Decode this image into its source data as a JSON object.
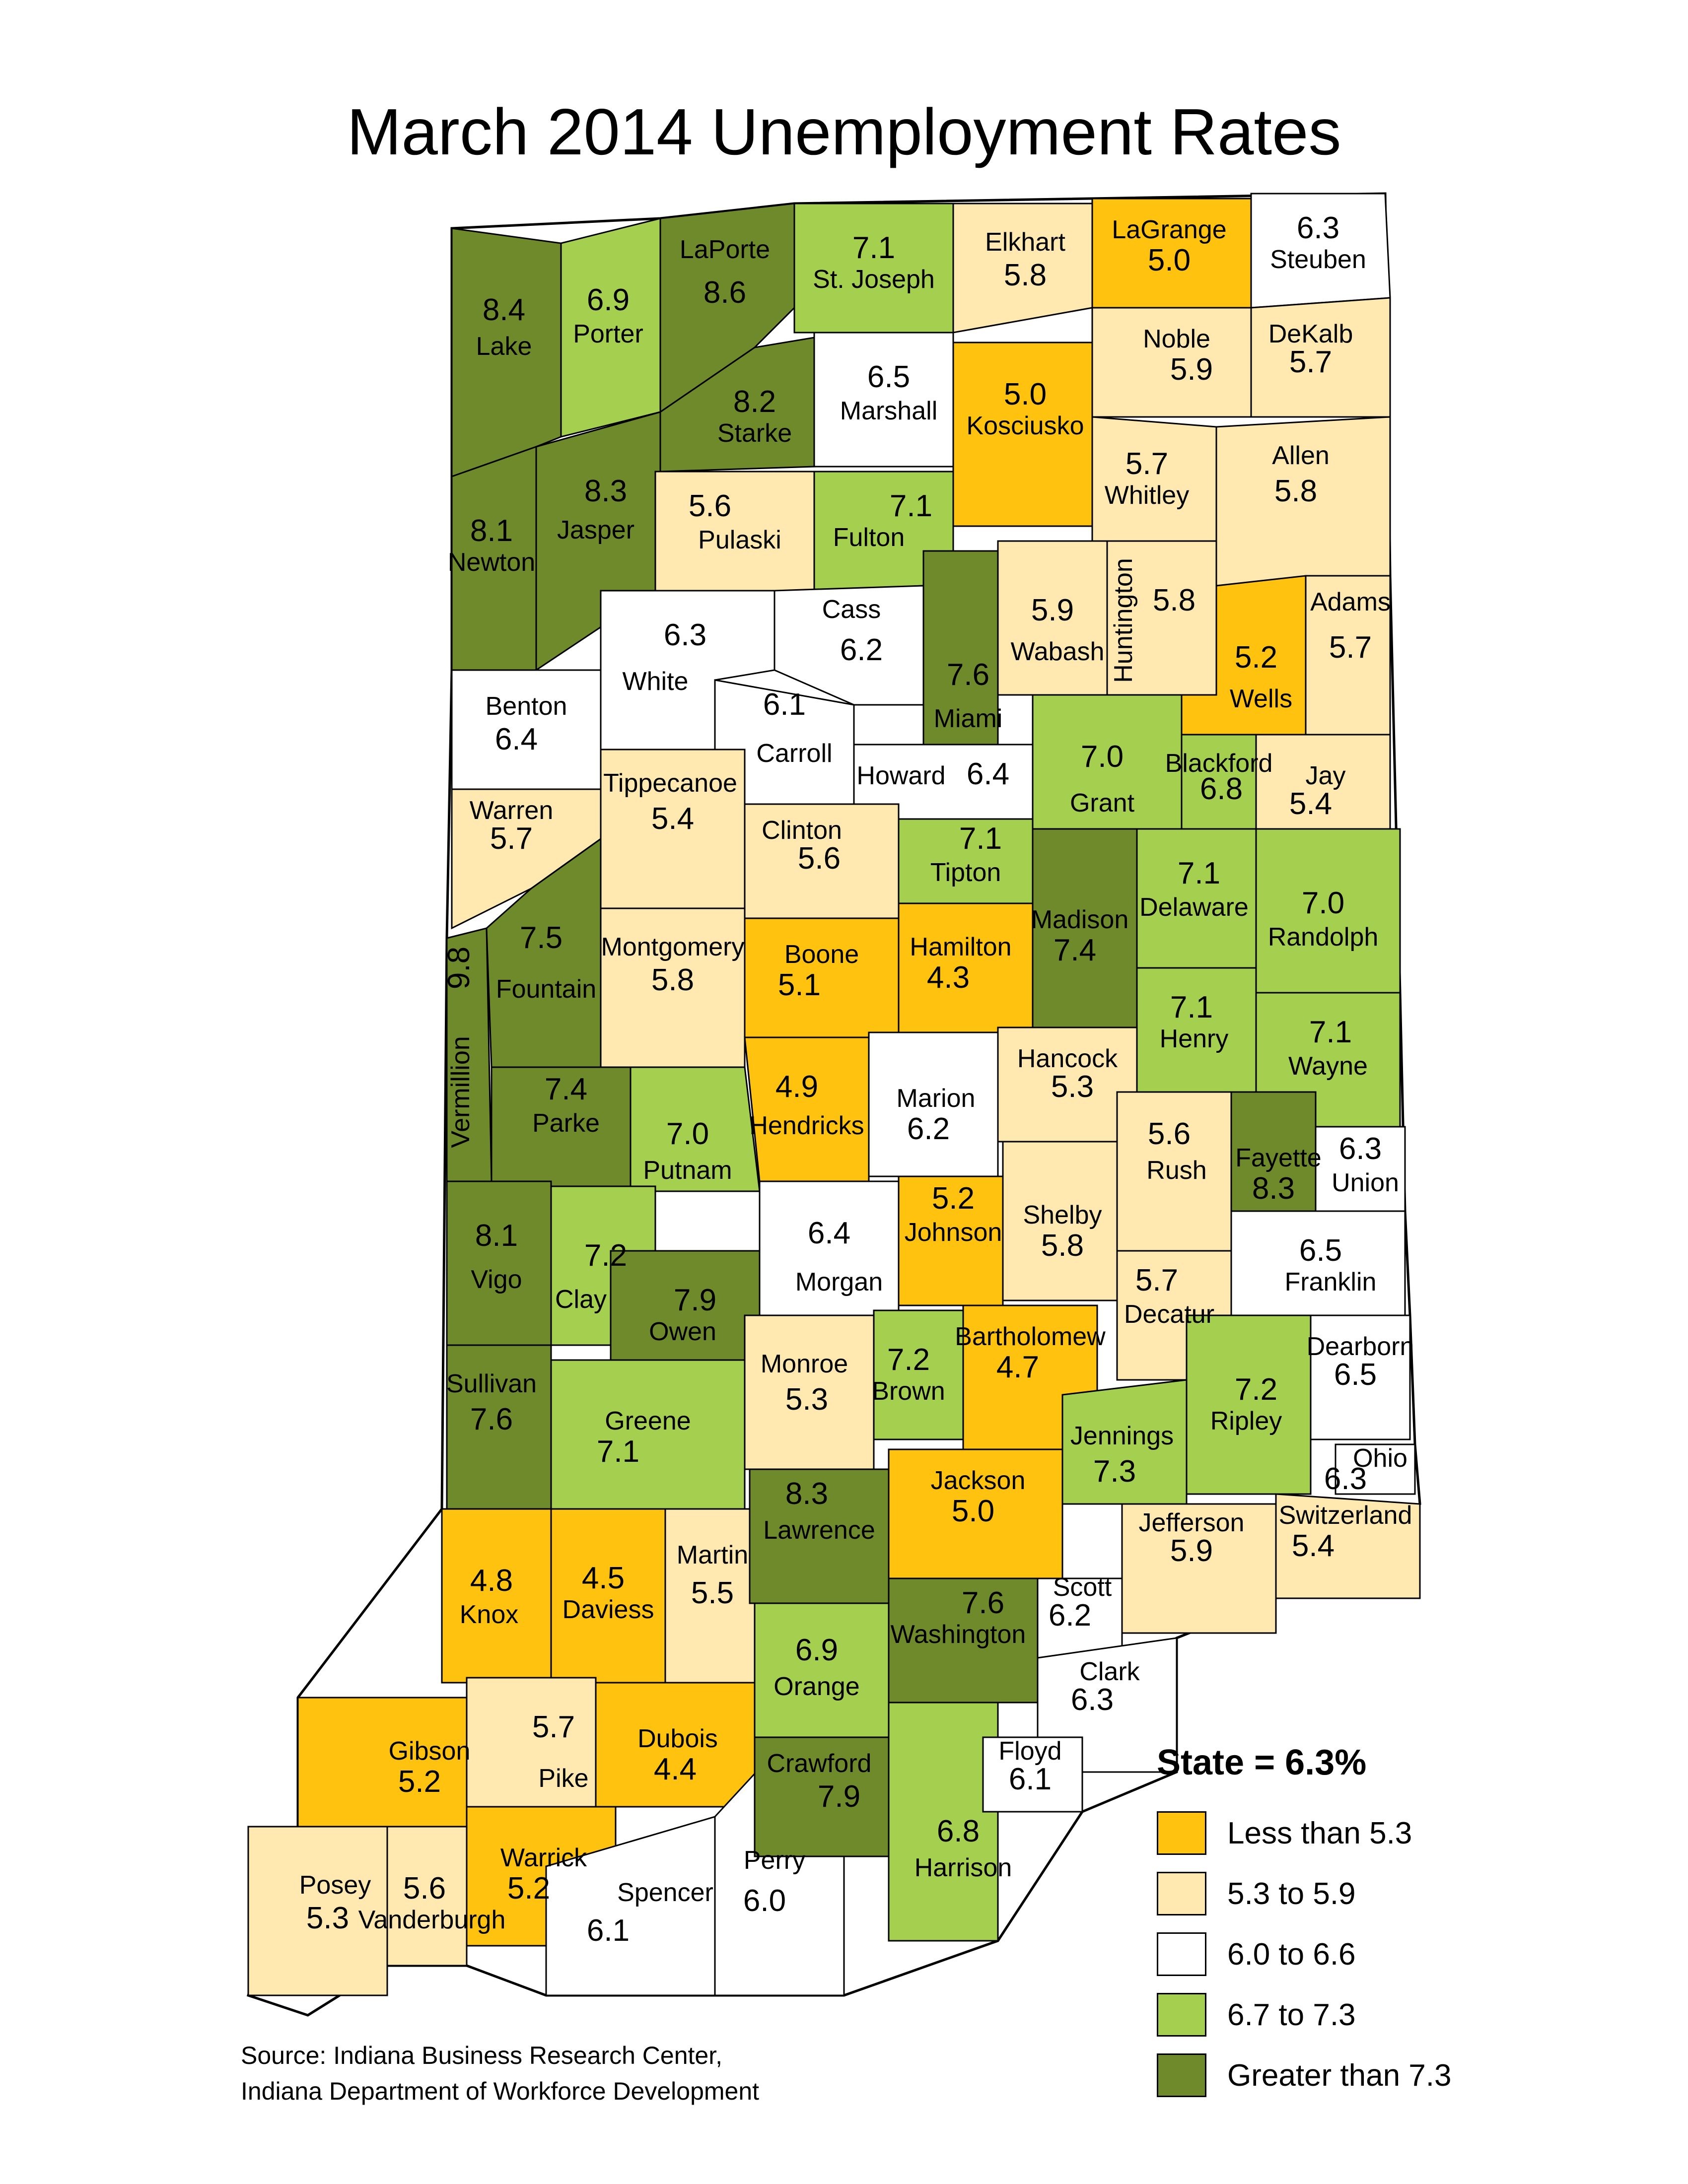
{
  "title": "March 2014 Unemployment Rates",
  "state_label": "State = 6.3%",
  "colors": {
    "lt53": "#FFC20E",
    "53to59": "#FFE9B0",
    "60to66": "#FFFFFF",
    "67to73": "#A4CF4F",
    "gt73": "#6F8A2B"
  },
  "legend": [
    {
      "label": "Less than 5.3",
      "color_key": "lt53"
    },
    {
      "label": "5.3 to 5.9",
      "color_key": "53to59"
    },
    {
      "label": "6.0 to 6.6",
      "color_key": "60to66"
    },
    {
      "label": "6.7 to 7.3",
      "color_key": "67to73"
    },
    {
      "label": "Greater than 7.3",
      "color_key": "gt73"
    }
  ],
  "source": [
    "Source: Indiana Business Research Center,",
    "Indiana Department of Workforce Development"
  ],
  "counties": [
    {
      "name": "Lake",
      "rate": "8.4",
      "cls": "gt73"
    },
    {
      "name": "Porter",
      "rate": "6.9",
      "cls": "67to73"
    },
    {
      "name": "LaPorte",
      "rate": "8.6",
      "cls": "gt73"
    },
    {
      "name": "St. Joseph",
      "rate": "7.1",
      "cls": "67to73"
    },
    {
      "name": "Elkhart",
      "rate": "5.8",
      "cls": "53to59"
    },
    {
      "name": "LaGrange",
      "rate": "5.0",
      "cls": "lt53"
    },
    {
      "name": "Steuben",
      "rate": "6.3",
      "cls": "60to66"
    },
    {
      "name": "Starke",
      "rate": "8.2",
      "cls": "gt73"
    },
    {
      "name": "Marshall",
      "rate": "6.5",
      "cls": "60to66"
    },
    {
      "name": "Kosciusko",
      "rate": "5.0",
      "cls": "lt53"
    },
    {
      "name": "Noble",
      "rate": "5.9",
      "cls": "53to59"
    },
    {
      "name": "DeKalb",
      "rate": "5.7",
      "cls": "53to59"
    },
    {
      "name": "Newton",
      "rate": "8.1",
      "cls": "gt73"
    },
    {
      "name": "Jasper",
      "rate": "8.3",
      "cls": "gt73"
    },
    {
      "name": "Pulaski",
      "rate": "5.6",
      "cls": "53to59"
    },
    {
      "name": "Fulton",
      "rate": "7.1",
      "cls": "67to73"
    },
    {
      "name": "Whitley",
      "rate": "5.7",
      "cls": "53to59"
    },
    {
      "name": "Allen",
      "rate": "5.8",
      "cls": "53to59"
    },
    {
      "name": "White",
      "rate": "6.3",
      "cls": "60to66"
    },
    {
      "name": "Cass",
      "rate": "6.2",
      "cls": "60to66"
    },
    {
      "name": "Miami",
      "rate": "7.6",
      "cls": "gt73"
    },
    {
      "name": "Wabash",
      "rate": "5.9",
      "cls": "53to59"
    },
    {
      "name": "Huntington",
      "rate": "5.8",
      "cls": "53to59"
    },
    {
      "name": "Wells",
      "rate": "5.2",
      "cls": "lt53"
    },
    {
      "name": "Adams",
      "rate": "5.7",
      "cls": "53to59"
    },
    {
      "name": "Benton",
      "rate": "6.4",
      "cls": "60to66"
    },
    {
      "name": "Carroll",
      "rate": "6.1",
      "cls": "60to66"
    },
    {
      "name": "Howard",
      "rate": "6.4",
      "cls": "60to66"
    },
    {
      "name": "Grant",
      "rate": "7.0",
      "cls": "67to73"
    },
    {
      "name": "Blackford",
      "rate": "6.8",
      "cls": "67to73"
    },
    {
      "name": "Jay",
      "rate": "5.4",
      "cls": "53to59"
    },
    {
      "name": "Warren",
      "rate": "5.7",
      "cls": "53to59"
    },
    {
      "name": "Tippecanoe",
      "rate": "5.4",
      "cls": "53to59"
    },
    {
      "name": "Clinton",
      "rate": "5.6",
      "cls": "53to59"
    },
    {
      "name": "Tipton",
      "rate": "7.1",
      "cls": "67to73"
    },
    {
      "name": "Madison",
      "rate": "7.4",
      "cls": "gt73"
    },
    {
      "name": "Delaware",
      "rate": "7.1",
      "cls": "67to73"
    },
    {
      "name": "Randolph",
      "rate": "7.0",
      "cls": "67to73"
    },
    {
      "name": "Vermillion",
      "rate": "9.8",
      "cls": "gt73"
    },
    {
      "name": "Fountain",
      "rate": "7.5",
      "cls": "gt73"
    },
    {
      "name": "Montgomery",
      "rate": "5.8",
      "cls": "53to59"
    },
    {
      "name": "Boone",
      "rate": "5.1",
      "cls": "lt53"
    },
    {
      "name": "Hamilton",
      "rate": "4.3",
      "cls": "lt53"
    },
    {
      "name": "Henry",
      "rate": "7.1",
      "cls": "67to73"
    },
    {
      "name": "Wayne",
      "rate": "7.1",
      "cls": "67to73"
    },
    {
      "name": "Parke",
      "rate": "7.4",
      "cls": "gt73"
    },
    {
      "name": "Putnam",
      "rate": "7.0",
      "cls": "67to73"
    },
    {
      "name": "Hendricks",
      "rate": "4.9",
      "cls": "lt53"
    },
    {
      "name": "Marion",
      "rate": "6.2",
      "cls": "60to66"
    },
    {
      "name": "Hancock",
      "rate": "5.3",
      "cls": "53to59"
    },
    {
      "name": "Rush",
      "rate": "5.6",
      "cls": "53to59"
    },
    {
      "name": "Fayette",
      "rate": "8.3",
      "cls": "gt73"
    },
    {
      "name": "Union",
      "rate": "6.3",
      "cls": "60to66"
    },
    {
      "name": "Vigo",
      "rate": "8.1",
      "cls": "gt73"
    },
    {
      "name": "Clay",
      "rate": "7.2",
      "cls": "67to73"
    },
    {
      "name": "Owen",
      "rate": "7.9",
      "cls": "gt73"
    },
    {
      "name": "Morgan",
      "rate": "6.4",
      "cls": "60to66"
    },
    {
      "name": "Johnson",
      "rate": "5.2",
      "cls": "lt53"
    },
    {
      "name": "Shelby",
      "rate": "5.8",
      "cls": "53to59"
    },
    {
      "name": "Decatur",
      "rate": "5.7",
      "cls": "53to59"
    },
    {
      "name": "Franklin",
      "rate": "6.5",
      "cls": "60to66"
    },
    {
      "name": "Sullivan",
      "rate": "7.6",
      "cls": "gt73"
    },
    {
      "name": "Greene",
      "rate": "7.1",
      "cls": "67to73"
    },
    {
      "name": "Monroe",
      "rate": "5.3",
      "cls": "53to59"
    },
    {
      "name": "Brown",
      "rate": "7.2",
      "cls": "67to73"
    },
    {
      "name": "Bartholomew",
      "rate": "4.7",
      "cls": "lt53"
    },
    {
      "name": "Jennings",
      "rate": "7.3",
      "cls": "67to73"
    },
    {
      "name": "Ripley",
      "rate": "7.2",
      "cls": "67to73"
    },
    {
      "name": "Dearborn",
      "rate": "6.5",
      "cls": "60to66"
    },
    {
      "name": "Ohio",
      "rate": "6.3",
      "cls": "60to66"
    },
    {
      "name": "Knox",
      "rate": "4.8",
      "cls": "lt53"
    },
    {
      "name": "Daviess",
      "rate": "4.5",
      "cls": "lt53"
    },
    {
      "name": "Martin",
      "rate": "5.5",
      "cls": "53to59"
    },
    {
      "name": "Lawrence",
      "rate": "8.3",
      "cls": "gt73"
    },
    {
      "name": "Jackson",
      "rate": "5.0",
      "cls": "lt53"
    },
    {
      "name": "Jefferson",
      "rate": "5.9",
      "cls": "53to59"
    },
    {
      "name": "Switzerland",
      "rate": "5.4",
      "cls": "53to59"
    },
    {
      "name": "Pike",
      "rate": "5.7",
      "cls": "53to59"
    },
    {
      "name": "Dubois",
      "rate": "4.4",
      "cls": "lt53"
    },
    {
      "name": "Orange",
      "rate": "6.9",
      "cls": "67to73"
    },
    {
      "name": "Washington",
      "rate": "7.6",
      "cls": "gt73"
    },
    {
      "name": "Scott",
      "rate": "6.2",
      "cls": "60to66"
    },
    {
      "name": "Clark",
      "rate": "6.3",
      "cls": "60to66"
    },
    {
      "name": "Gibson",
      "rate": "5.2",
      "cls": "lt53"
    },
    {
      "name": "Warrick",
      "rate": "5.2",
      "cls": "lt53"
    },
    {
      "name": "Posey",
      "rate": "5.3",
      "cls": "53to59"
    },
    {
      "name": "Vanderburgh",
      "rate": "5.6",
      "cls": "53to59"
    },
    {
      "name": "Spencer",
      "rate": "6.1",
      "cls": "60to66"
    },
    {
      "name": "Perry",
      "rate": "6.0",
      "cls": "60to66"
    },
    {
      "name": "Crawford",
      "rate": "7.9",
      "cls": "gt73"
    },
    {
      "name": "Harrison",
      "rate": "6.8",
      "cls": "67to73"
    },
    {
      "name": "Floyd",
      "rate": "6.1",
      "cls": "60to66"
    }
  ]
}
